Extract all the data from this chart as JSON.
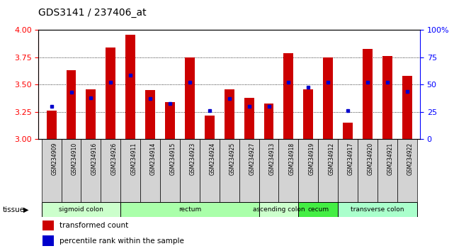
{
  "title": "GDS3141 / 237406_at",
  "samples": [
    "GSM234909",
    "GSM234910",
    "GSM234916",
    "GSM234926",
    "GSM234911",
    "GSM234914",
    "GSM234915",
    "GSM234923",
    "GSM234924",
    "GSM234925",
    "GSM234927",
    "GSM234913",
    "GSM234918",
    "GSM234919",
    "GSM234912",
    "GSM234917",
    "GSM234920",
    "GSM234921",
    "GSM234922"
  ],
  "red_values": [
    3.26,
    3.63,
    3.46,
    3.84,
    3.96,
    3.45,
    3.34,
    3.75,
    3.22,
    3.46,
    3.38,
    3.33,
    3.79,
    3.46,
    3.75,
    3.15,
    3.83,
    3.76,
    3.58
  ],
  "blue_values": [
    3.3,
    3.43,
    3.38,
    3.52,
    3.59,
    3.37,
    3.33,
    3.52,
    3.26,
    3.37,
    3.3,
    3.3,
    3.52,
    3.48,
    3.52,
    3.26,
    3.52,
    3.52,
    3.44
  ],
  "ylim": [
    3.0,
    4.0
  ],
  "yticks_left": [
    3.0,
    3.25,
    3.5,
    3.75,
    4.0
  ],
  "yticks_right": [
    0,
    25,
    50,
    75,
    100
  ],
  "gridlines": [
    3.25,
    3.5,
    3.75
  ],
  "bar_color": "#cc0000",
  "blue_color": "#0000cc",
  "cell_bg": "#d3d3d3",
  "tissue_groups": [
    {
      "label": "sigmoid colon",
      "start": 0,
      "end": 4,
      "color": "#ccffcc"
    },
    {
      "label": "rectum",
      "start": 4,
      "end": 11,
      "color": "#aaffaa"
    },
    {
      "label": "ascending colon",
      "start": 11,
      "end": 13,
      "color": "#ccffcc"
    },
    {
      "label": "cecum",
      "start": 13,
      "end": 15,
      "color": "#44ee44"
    },
    {
      "label": "transverse colon",
      "start": 15,
      "end": 19,
      "color": "#aaffcc"
    }
  ],
  "legend_red_label": "transformed count",
  "legend_blue_label": "percentile rank within the sample",
  "tissue_label": "tissue",
  "bar_width": 0.5
}
